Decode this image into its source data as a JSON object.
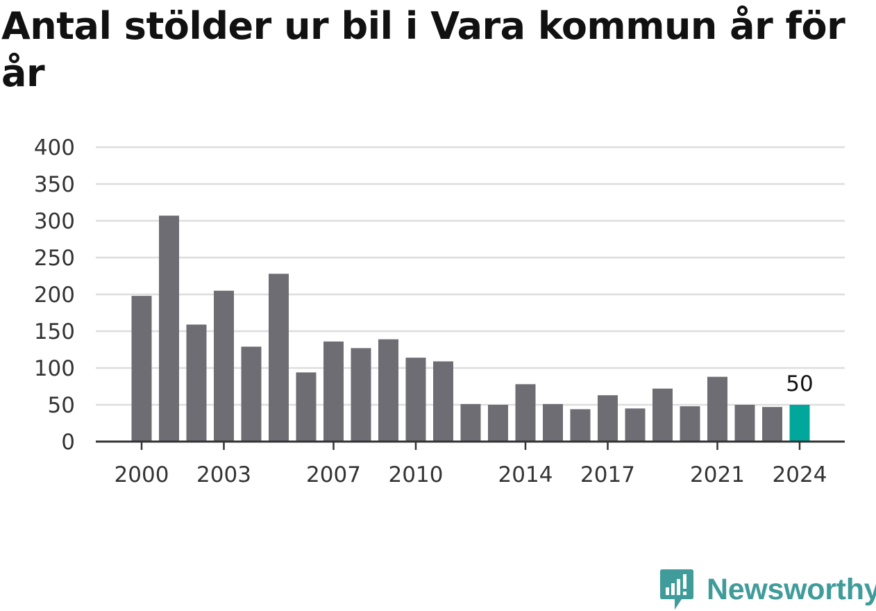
{
  "title": "Antal stölder ur bil i Vara kommun år för år",
  "brand": {
    "name": "Newsworthy",
    "logo_icon": "newsworthy-chart-bubble-icon",
    "color": "#3f9c9a"
  },
  "colors": {
    "bar": "#6e6d73",
    "highlight": "#00a79a",
    "grid": "#dddddd",
    "axis": "#333333"
  },
  "chart_data": {
    "type": "bar",
    "title": "Antal stölder ur bil i Vara kommun år för år",
    "xlabel": "",
    "ylabel": "",
    "categories": [
      "2000",
      "2001",
      "2002",
      "2003",
      "2004",
      "2005",
      "2006",
      "2007",
      "2008",
      "2009",
      "2010",
      "2011",
      "2012",
      "2013",
      "2014",
      "2015",
      "2016",
      "2017",
      "2018",
      "2019",
      "2020",
      "2021",
      "2022",
      "2023",
      "2024"
    ],
    "values": [
      198,
      307,
      159,
      205,
      129,
      228,
      94,
      136,
      127,
      139,
      114,
      109,
      51,
      50,
      78,
      51,
      44,
      63,
      45,
      72,
      48,
      88,
      50,
      47,
      50
    ],
    "x_tick_labels": [
      "2000",
      "2003",
      "2007",
      "2010",
      "2014",
      "2017",
      "2021",
      "2024"
    ],
    "y_ticks": [
      0,
      50,
      100,
      150,
      200,
      250,
      300,
      350,
      400
    ],
    "ylim": [
      0,
      400
    ],
    "grid": true,
    "highlight": {
      "category": "2024",
      "label": "50"
    }
  }
}
